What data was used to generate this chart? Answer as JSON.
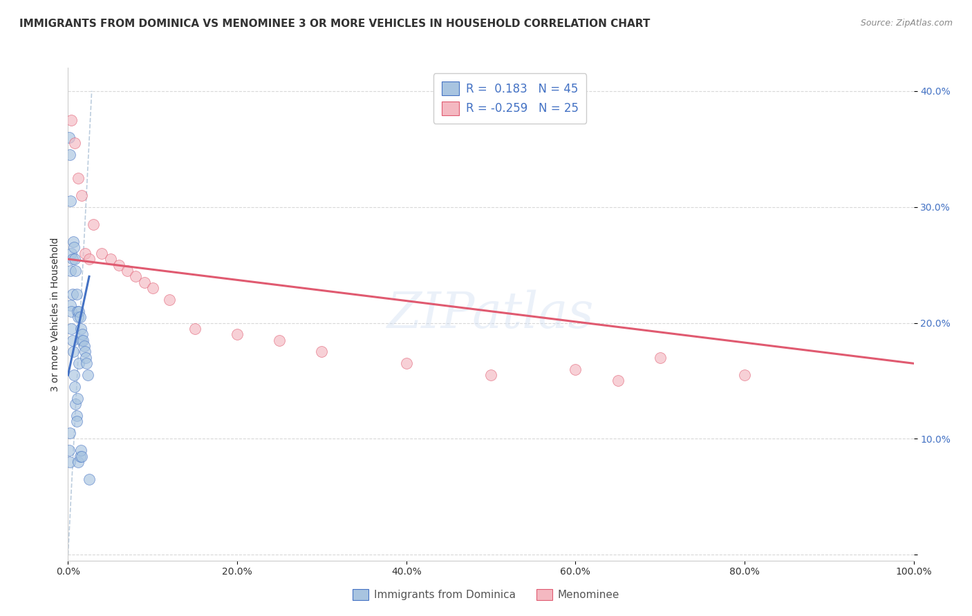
{
  "title": "IMMIGRANTS FROM DOMINICA VS MENOMINEE 3 OR MORE VEHICLES IN HOUSEHOLD CORRELATION CHART",
  "source": "Source: ZipAtlas.com",
  "ylabel": "3 or more Vehicles in Household",
  "legend_blue_r": "0.183",
  "legend_blue_n": "45",
  "legend_pink_r": "-0.259",
  "legend_pink_n": "25",
  "blue_scatter_x": [
    0.001,
    0.001,
    0.002,
    0.002,
    0.002,
    0.003,
    0.003,
    0.003,
    0.004,
    0.004,
    0.004,
    0.005,
    0.005,
    0.005,
    0.006,
    0.006,
    0.007,
    0.007,
    0.008,
    0.008,
    0.009,
    0.009,
    0.01,
    0.01,
    0.01,
    0.011,
    0.011,
    0.012,
    0.012,
    0.013,
    0.013,
    0.014,
    0.014,
    0.015,
    0.015,
    0.016,
    0.016,
    0.017,
    0.018,
    0.019,
    0.02,
    0.021,
    0.022,
    0.023,
    0.025
  ],
  "blue_scatter_y": [
    0.36,
    0.09,
    0.345,
    0.105,
    0.08,
    0.305,
    0.245,
    0.215,
    0.26,
    0.21,
    0.195,
    0.255,
    0.225,
    0.185,
    0.27,
    0.175,
    0.265,
    0.155,
    0.255,
    0.145,
    0.245,
    0.13,
    0.225,
    0.12,
    0.115,
    0.21,
    0.135,
    0.205,
    0.08,
    0.21,
    0.165,
    0.205,
    0.085,
    0.195,
    0.09,
    0.185,
    0.085,
    0.19,
    0.185,
    0.18,
    0.175,
    0.17,
    0.165,
    0.155,
    0.065
  ],
  "pink_scatter_x": [
    0.004,
    0.008,
    0.012,
    0.016,
    0.02,
    0.025,
    0.03,
    0.04,
    0.05,
    0.06,
    0.07,
    0.08,
    0.09,
    0.1,
    0.12,
    0.15,
    0.2,
    0.25,
    0.3,
    0.4,
    0.5,
    0.6,
    0.65,
    0.7,
    0.8
  ],
  "pink_scatter_y": [
    0.375,
    0.355,
    0.325,
    0.31,
    0.26,
    0.255,
    0.285,
    0.26,
    0.255,
    0.25,
    0.245,
    0.24,
    0.235,
    0.23,
    0.22,
    0.195,
    0.19,
    0.185,
    0.175,
    0.165,
    0.155,
    0.16,
    0.15,
    0.17,
    0.155
  ],
  "blue_line_x": [
    0.0,
    0.025
  ],
  "blue_line_y": [
    0.155,
    0.24
  ],
  "pink_line_x": [
    0.0,
    1.0
  ],
  "pink_line_y": [
    0.255,
    0.165
  ],
  "ref_line_x": [
    0.0,
    0.028
  ],
  "ref_line_y": [
    0.0,
    0.4
  ],
  "blue_color": "#a8c4e0",
  "blue_line_color": "#4472c4",
  "pink_color": "#f4b8c1",
  "pink_line_color": "#e05a70",
  "background_color": "#ffffff",
  "grid_color": "#d8d8d8",
  "watermark": "ZIPatlas",
  "xlim": [
    0.0,
    1.0
  ],
  "ylim": [
    -0.005,
    0.42
  ],
  "yticks": [
    0.0,
    0.1,
    0.2,
    0.3,
    0.4
  ],
  "ytick_labels": [
    "",
    "10.0%",
    "20.0%",
    "30.0%",
    "40.0%"
  ],
  "xticks": [
    0.0,
    0.2,
    0.4,
    0.6,
    0.8,
    1.0
  ],
  "xtick_labels": [
    "0.0%",
    "20.0%",
    "40.0%",
    "60.0%",
    "80.0%",
    "100.0%"
  ],
  "title_fontsize": 11,
  "axis_label_fontsize": 10,
  "tick_fontsize": 10,
  "legend_fontsize": 12
}
